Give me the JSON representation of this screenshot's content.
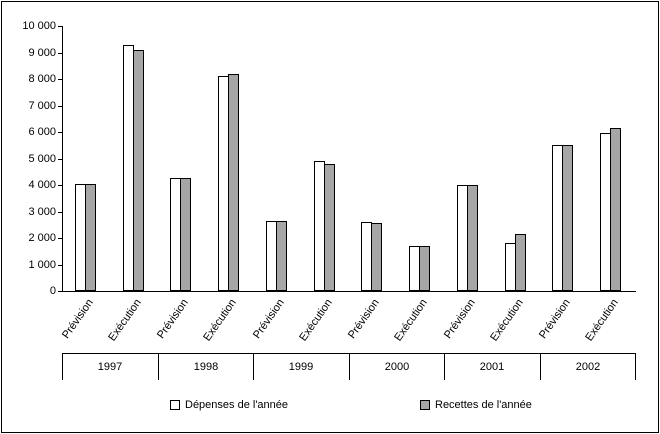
{
  "chart_data": {
    "type": "bar",
    "title": "",
    "grid": false,
    "legend_position": "bottom",
    "ylim": [
      0,
      10000
    ],
    "ytick_step": 1000,
    "ytick_labels": [
      "0",
      "1 000",
      "2 000",
      "3 000",
      "4 000",
      "5 000",
      "6 000",
      "7 000",
      "8 000",
      "9 000",
      "10 000"
    ],
    "years": [
      "1997",
      "1998",
      "1999",
      "2000",
      "2001",
      "2002"
    ],
    "subcategories": [
      "Prévision",
      "Exécution"
    ],
    "categories": [
      "Prévision",
      "Exécution",
      "Prévision",
      "Exécution",
      "Prévision",
      "Exécution",
      "Prévision",
      "Exécution",
      "Prévision",
      "Exécution",
      "Prévision",
      "Exécution"
    ],
    "series": [
      {
        "name": "Dépenses de l'année",
        "color": "#FFFFFF",
        "values": [
          4050,
          9300,
          4250,
          8100,
          2650,
          4900,
          2600,
          1700,
          4000,
          1800,
          5500,
          5950
        ]
      },
      {
        "name": "Recettes de l'année",
        "color": "#A6A6A6",
        "values": [
          4050,
          9100,
          4250,
          8200,
          2650,
          4800,
          2550,
          1700,
          4000,
          2150,
          5500,
          6150
        ]
      }
    ]
  }
}
